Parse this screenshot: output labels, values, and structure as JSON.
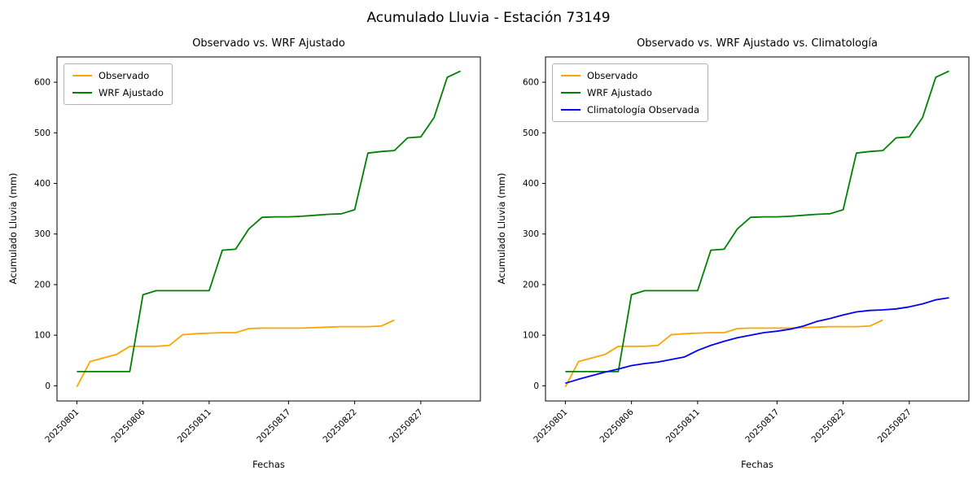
{
  "figure": {
    "suptitle": "Acumulado Lluvia - Estación 73149",
    "background": "#ffffff"
  },
  "chart_data": [
    {
      "type": "line",
      "title": "Observado vs. WRF Ajustado",
      "xlabel": "Fechas",
      "ylabel": "Acumulado Lluvia (mm)",
      "x_dates": [
        "20250801",
        "20250802",
        "20250803",
        "20250804",
        "20250805",
        "20250806",
        "20250807",
        "20250808",
        "20250809",
        "20250810",
        "20250811",
        "20250812",
        "20250813",
        "20250814",
        "20250815",
        "20250816",
        "20250817",
        "20250818",
        "20250819",
        "20250820",
        "20250821",
        "20250822",
        "20250823",
        "20250824",
        "20250825",
        "20250826",
        "20250827",
        "20250828",
        "20250829",
        "20250830"
      ],
      "xtick_labels": [
        "20250801",
        "20250806",
        "20250811",
        "20250817",
        "20250822",
        "20250827"
      ],
      "xtick_indices": [
        0,
        5,
        10,
        16,
        21,
        26
      ],
      "yticks": [
        0,
        100,
        200,
        300,
        400,
        500,
        600
      ],
      "xlim": [
        -1.5,
        30.5
      ],
      "ylim": [
        -30,
        650
      ],
      "grid": false,
      "legend_position": "upper-left",
      "series": [
        {
          "name": "Observado",
          "color": "#ffa500",
          "values": [
            -2,
            48,
            55,
            62,
            78,
            78,
            78,
            80,
            101,
            103,
            104,
            105,
            105,
            113,
            114,
            114,
            114,
            114,
            115,
            116,
            117,
            117,
            117,
            118,
            130
          ]
        },
        {
          "name": "WRF Ajustado",
          "color": "#008000",
          "values": [
            28,
            28,
            28,
            28,
            28,
            180,
            188,
            188,
            188,
            188,
            188,
            268,
            270,
            310,
            333,
            334,
            334,
            335,
            337,
            339,
            340,
            348,
            460,
            463,
            465,
            490,
            492,
            530,
            610,
            622
          ]
        }
      ]
    },
    {
      "type": "line",
      "title": "Observado vs. WRF Ajustado vs. Climatología",
      "xlabel": "Fechas",
      "ylabel": "Acumulado Lluvia (mm)",
      "x_dates": [
        "20250801",
        "20250802",
        "20250803",
        "20250804",
        "20250805",
        "20250806",
        "20250807",
        "20250808",
        "20250809",
        "20250810",
        "20250811",
        "20250812",
        "20250813",
        "20250814",
        "20250815",
        "20250816",
        "20250817",
        "20250818",
        "20250819",
        "20250820",
        "20250821",
        "20250822",
        "20250823",
        "20250824",
        "20250825",
        "20250826",
        "20250827",
        "20250828",
        "20250829",
        "20250830"
      ],
      "xtick_labels": [
        "20250801",
        "20250806",
        "20250811",
        "20250817",
        "20250822",
        "20250827"
      ],
      "xtick_indices": [
        0,
        5,
        10,
        16,
        21,
        26
      ],
      "yticks": [
        0,
        100,
        200,
        300,
        400,
        500,
        600
      ],
      "xlim": [
        -1.5,
        30.5
      ],
      "ylim": [
        -30,
        650
      ],
      "grid": false,
      "legend_position": "upper-left",
      "series": [
        {
          "name": "Observado",
          "color": "#ffa500",
          "values": [
            -2,
            48,
            55,
            62,
            78,
            78,
            78,
            80,
            101,
            103,
            104,
            105,
            105,
            113,
            114,
            114,
            114,
            114,
            115,
            116,
            117,
            117,
            117,
            118,
            130
          ]
        },
        {
          "name": "WRF Ajustado",
          "color": "#008000",
          "values": [
            28,
            28,
            28,
            28,
            28,
            180,
            188,
            188,
            188,
            188,
            188,
            268,
            270,
            310,
            333,
            334,
            334,
            335,
            337,
            339,
            340,
            348,
            460,
            463,
            465,
            490,
            492,
            530,
            610,
            622
          ]
        },
        {
          "name": "Climatología Observada",
          "color": "#0000ff",
          "values": [
            5,
            13,
            20,
            27,
            33,
            40,
            44,
            47,
            52,
            57,
            70,
            80,
            88,
            95,
            100,
            105,
            108,
            112,
            118,
            127,
            133,
            140,
            146,
            149,
            150,
            152,
            156,
            162,
            170,
            174
          ]
        }
      ]
    }
  ]
}
